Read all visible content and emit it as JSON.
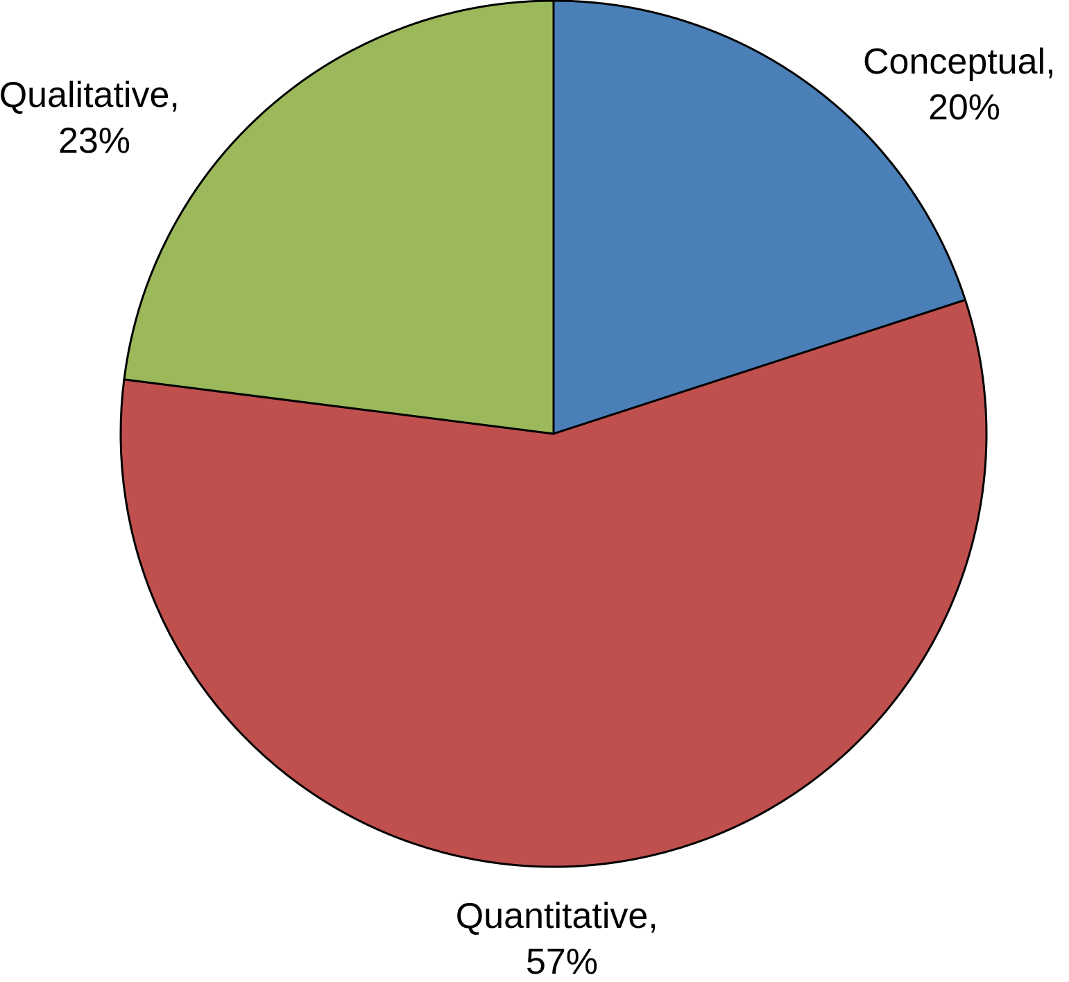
{
  "chart_data": {
    "type": "pie",
    "start_angle_deg": 0,
    "direction": "clockwise",
    "slices": [
      {
        "label": "Conceptual,",
        "value_text": "20%",
        "value": 20,
        "color": "#4a7fb8"
      },
      {
        "label": "Quantitative,",
        "value_text": "57%",
        "value": 57,
        "color": "#c0504d"
      },
      {
        "label": "Qualitative,",
        "value_text": "23%",
        "value": 23,
        "color": "#9bb85a"
      }
    ],
    "legend": "none",
    "data_labels": "outside"
  }
}
